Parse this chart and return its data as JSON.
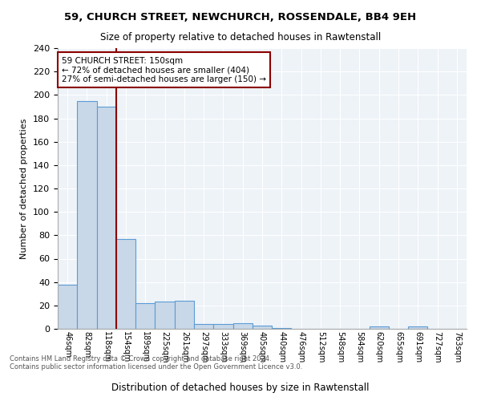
{
  "title1": "59, CHURCH STREET, NEWCHURCH, ROSSENDALE, BB4 9EH",
  "title2": "Size of property relative to detached houses in Rawtenstall",
  "xlabel": "Distribution of detached houses by size in Rawtenstall",
  "ylabel": "Number of detached properties",
  "bin_labels": [
    "46sqm",
    "82sqm",
    "118sqm",
    "154sqm",
    "189sqm",
    "225sqm",
    "261sqm",
    "297sqm",
    "333sqm",
    "369sqm",
    "405sqm",
    "440sqm",
    "476sqm",
    "512sqm",
    "548sqm",
    "584sqm",
    "620sqm",
    "655sqm",
    "691sqm",
    "727sqm",
    "763sqm"
  ],
  "bar_values": [
    38,
    195,
    190,
    77,
    22,
    23,
    24,
    4,
    4,
    5,
    3,
    1,
    0,
    0,
    0,
    0,
    2,
    0,
    2,
    0,
    0
  ],
  "bar_color": "#c8d8e8",
  "bar_edge_color": "#5b9bd5",
  "vline_x": 2.5,
  "vline_color": "#8b0000",
  "annotation_line1": "59 CHURCH STREET: 150sqm",
  "annotation_line2": "← 72% of detached houses are smaller (404)",
  "annotation_line3": "27% of semi-detached houses are larger (150) →",
  "annotation_box_color": "white",
  "annotation_box_edge": "#8b0000",
  "footer": "Contains HM Land Registry data © Crown copyright and database right 2024.\nContains public sector information licensed under the Open Government Licence v3.0.",
  "plot_bg_color": "#eef3f8",
  "ylim": [
    0,
    240
  ],
  "yticks": [
    0,
    20,
    40,
    60,
    80,
    100,
    120,
    140,
    160,
    180,
    200,
    220,
    240
  ]
}
